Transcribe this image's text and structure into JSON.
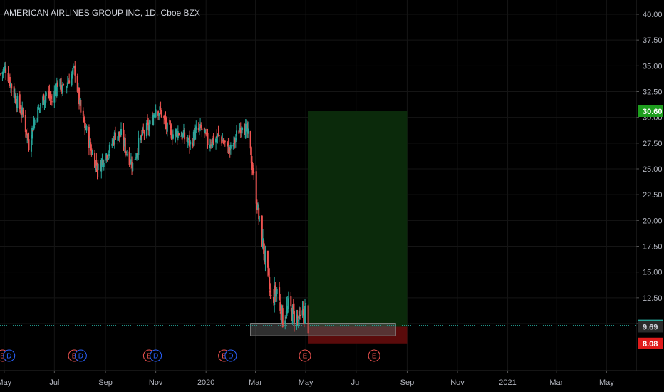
{
  "header": {
    "title": "AMERICAN AIRLINES GROUP INC, 1D, Cboe BZX"
  },
  "colors": {
    "background": "#000000",
    "up": "#26a69a",
    "down": "#ef5350",
    "grid": "#151515",
    "axis_text": "#b2b5be",
    "target_zone": "#0b2a0b",
    "stop_zone": "#5a0b0b",
    "target_badge": "#1e9e1e",
    "stop_badge": "#e01b1b",
    "price_badge": "#26a69a",
    "entry_badge": "#2a2a2a"
  },
  "chart_data": {
    "type": "candlestick",
    "title": "AMERICAN AIRLINES GROUP INC, 1D, Cboe BZX",
    "ylim": [
      7.0,
      41.2
    ],
    "y_ticks": [
      "40.00",
      "37.50",
      "35.00",
      "32.50",
      "30.00",
      "27.50",
      "25.00",
      "22.50",
      "20.00",
      "17.50",
      "15.00",
      "12.50",
      "10.00"
    ],
    "x_ticks": [
      "May",
      "Jul",
      "Sep",
      "Nov",
      "2020",
      "Mar",
      "May",
      "Jul",
      "Sep",
      "Nov",
      "2021",
      "Mar",
      "May"
    ],
    "x_tick_dates": [
      "2019-05-01",
      "2019-07-01",
      "2019-09-01",
      "2019-11-01",
      "2020-01-01",
      "2020-03-01",
      "2020-05-01",
      "2020-07-01",
      "2020-09-01",
      "2020-11-01",
      "2021-01-01",
      "2021-03-01",
      "2021-05-01"
    ],
    "date_range": [
      "2019-04-26",
      "2021-06-06"
    ],
    "series_close": [
      [
        "2019-04-26",
        34.2
      ],
      [
        "2019-05-03",
        34.8
      ],
      [
        "2019-05-10",
        33.0
      ],
      [
        "2019-05-17",
        31.4
      ],
      [
        "2019-05-24",
        30.2
      ],
      [
        "2019-05-31",
        27.4
      ],
      [
        "2019-06-07",
        29.8
      ],
      [
        "2019-06-14",
        31.2
      ],
      [
        "2019-06-21",
        32.4
      ],
      [
        "2019-06-28",
        31.6
      ],
      [
        "2019-07-05",
        33.4
      ],
      [
        "2019-07-12",
        32.6
      ],
      [
        "2019-07-19",
        33.8
      ],
      [
        "2019-07-26",
        34.6
      ],
      [
        "2019-08-02",
        30.4
      ],
      [
        "2019-08-09",
        28.6
      ],
      [
        "2019-08-16",
        26.4
      ],
      [
        "2019-08-23",
        25.0
      ],
      [
        "2019-08-30",
        26.2
      ],
      [
        "2019-09-06",
        26.8
      ],
      [
        "2019-09-13",
        28.4
      ],
      [
        "2019-09-20",
        28.2
      ],
      [
        "2019-09-27",
        26.6
      ],
      [
        "2019-10-04",
        25.4
      ],
      [
        "2019-10-11",
        27.4
      ],
      [
        "2019-10-18",
        28.6
      ],
      [
        "2019-10-25",
        29.2
      ],
      [
        "2019-11-01",
        31.0
      ],
      [
        "2019-11-08",
        30.4
      ],
      [
        "2019-11-15",
        28.8
      ],
      [
        "2019-11-22",
        28.4
      ],
      [
        "2019-11-29",
        28.6
      ],
      [
        "2019-12-06",
        28.0
      ],
      [
        "2019-12-13",
        27.4
      ],
      [
        "2019-12-20",
        28.6
      ],
      [
        "2019-12-27",
        28.8
      ],
      [
        "2020-01-03",
        27.6
      ],
      [
        "2020-01-10",
        27.8
      ],
      [
        "2020-01-17",
        28.2
      ],
      [
        "2020-01-24",
        27.4
      ],
      [
        "2020-01-31",
        26.8
      ],
      [
        "2020-02-07",
        28.2
      ],
      [
        "2020-02-14",
        29.6
      ],
      [
        "2020-02-21",
        28.2
      ],
      [
        "2020-02-28",
        24.2
      ],
      [
        "2020-03-06",
        19.6
      ],
      [
        "2020-03-13",
        16.2
      ],
      [
        "2020-03-20",
        12.2
      ],
      [
        "2020-03-27",
        13.4
      ],
      [
        "2020-04-03",
        10.4
      ],
      [
        "2020-04-10",
        11.6
      ],
      [
        "2020-04-17",
        10.8
      ],
      [
        "2020-04-24",
        10.2
      ],
      [
        "2020-05-01",
        11.4
      ],
      [
        "2020-05-04",
        9.82
      ]
    ],
    "annotations": {
      "target": 30.6,
      "entry": 9.69,
      "stop": 8.08,
      "last_price": 9.82,
      "target_label": "30.60",
      "entry_label": "9.69",
      "stop_label": "8.08",
      "last_price_label": "9.82",
      "position_start": "2020-05-04",
      "position_end": "2020-09-01",
      "entry_zone_start": "2020-02-24",
      "entry_zone_end": "2020-08-18"
    },
    "event_markers": [
      {
        "date": "2019-04-29",
        "label": "E",
        "kind": "earnings"
      },
      {
        "date": "2019-05-07",
        "label": "D",
        "kind": "dividend"
      },
      {
        "date": "2019-07-25",
        "label": "E",
        "kind": "earnings"
      },
      {
        "date": "2019-08-02",
        "label": "D",
        "kind": "dividend"
      },
      {
        "date": "2019-10-24",
        "label": "E",
        "kind": "earnings"
      },
      {
        "date": "2019-11-01",
        "label": "D",
        "kind": "dividend"
      },
      {
        "date": "2020-01-23",
        "label": "E",
        "kind": "earnings"
      },
      {
        "date": "2020-01-31",
        "label": "D",
        "kind": "dividend"
      },
      {
        "date": "2020-04-30",
        "label": "E",
        "kind": "earnings"
      },
      {
        "date": "2020-07-23",
        "label": "E",
        "kind": "earnings"
      }
    ]
  }
}
